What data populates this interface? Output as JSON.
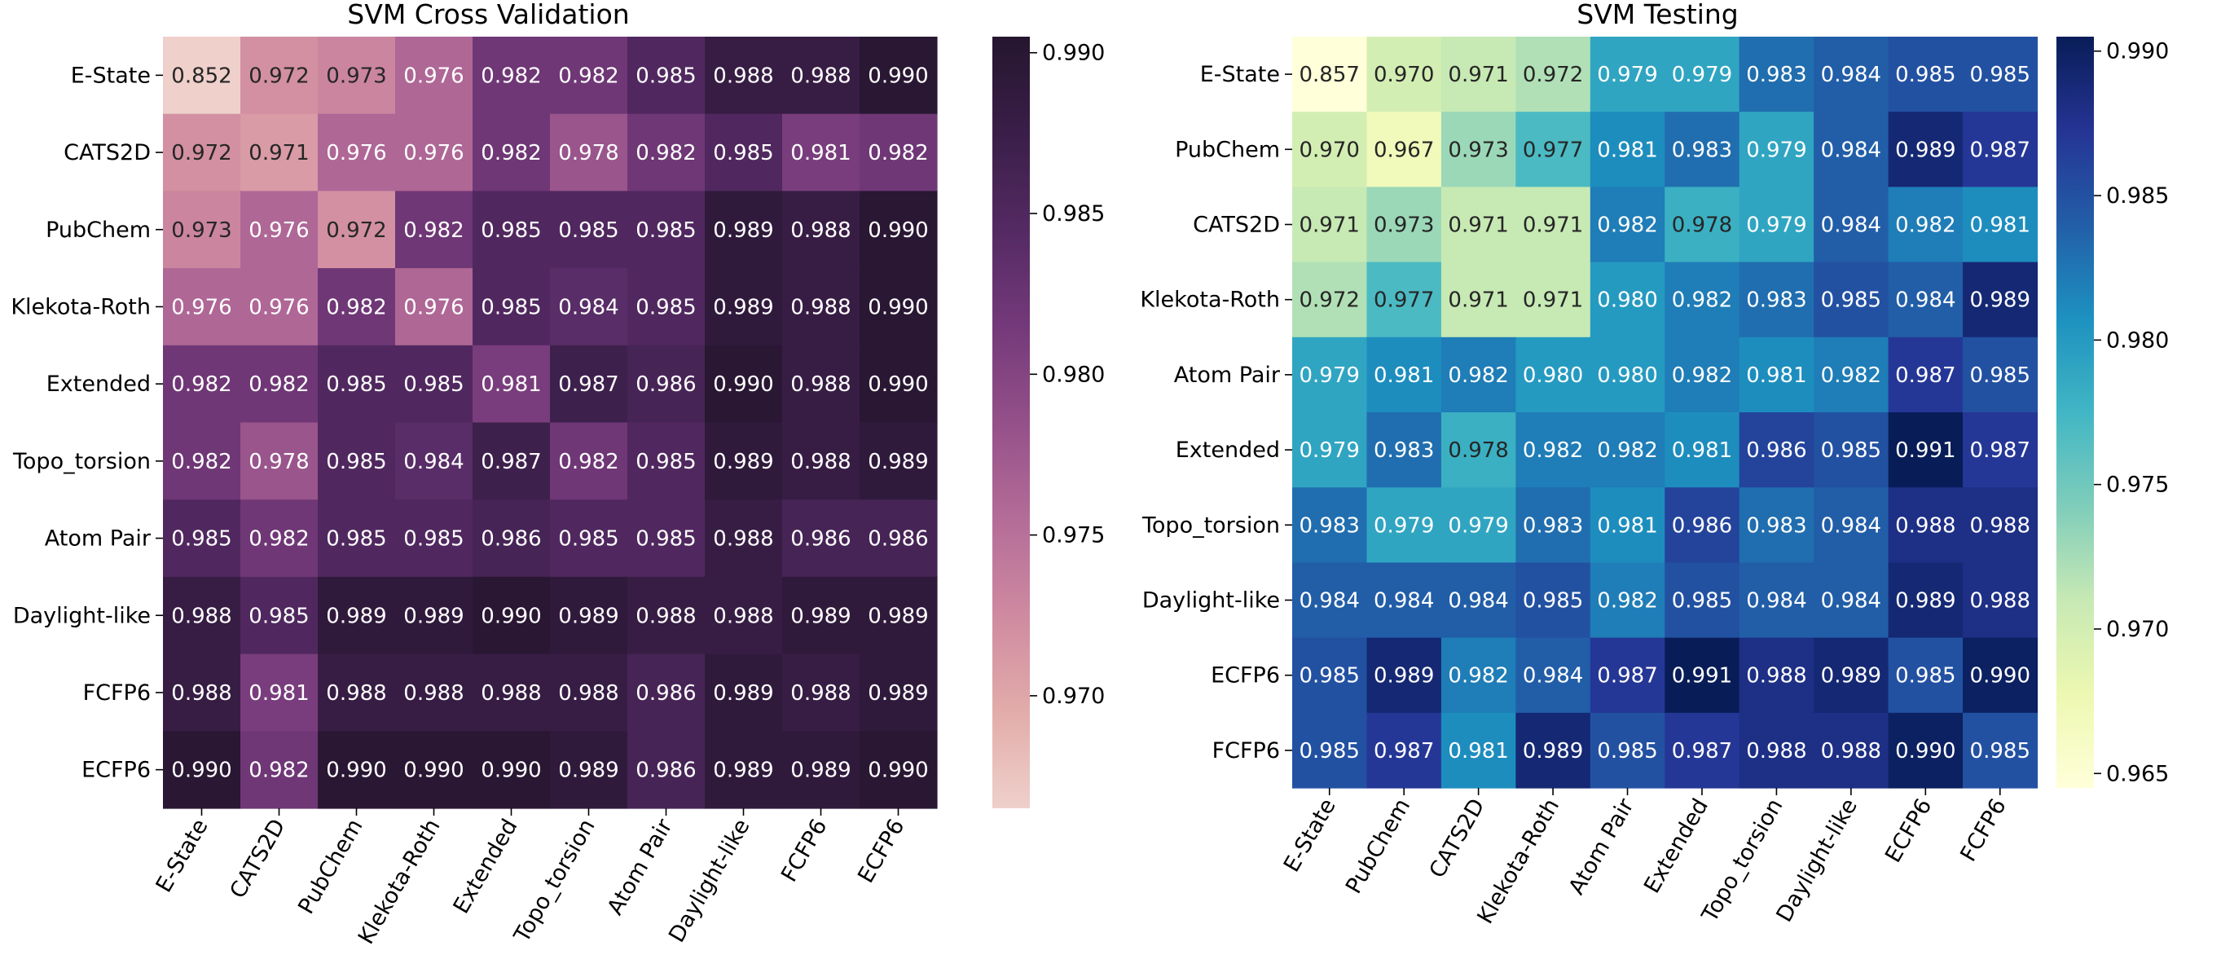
{
  "chart_data": [
    {
      "type": "heatmap",
      "title": "SVM Cross Validation",
      "xlabel": "",
      "ylabel": "",
      "row_labels": [
        "E-State",
        "CATS2D",
        "PubChem",
        "Klekota-Roth",
        "Extended",
        "Topo_torsion",
        "Atom Pair",
        "Daylight-like",
        "FCFP6",
        "ECFP6"
      ],
      "col_labels": [
        "E-State",
        "CATS2D",
        "PubChem",
        "Klekota-Roth",
        "Extended",
        "Topo_torsion",
        "Atom Pair",
        "Daylight-like",
        "FCFP6",
        "ECFP6"
      ],
      "values": [
        [
          0.852,
          0.972,
          0.973,
          0.976,
          0.982,
          0.982,
          0.985,
          0.988,
          0.988,
          0.99
        ],
        [
          0.972,
          0.971,
          0.976,
          0.976,
          0.982,
          0.978,
          0.982,
          0.985,
          0.981,
          0.982
        ],
        [
          0.973,
          0.976,
          0.972,
          0.982,
          0.985,
          0.985,
          0.985,
          0.989,
          0.988,
          0.99
        ],
        [
          0.976,
          0.976,
          0.982,
          0.976,
          0.985,
          0.984,
          0.985,
          0.989,
          0.988,
          0.99
        ],
        [
          0.982,
          0.982,
          0.985,
          0.985,
          0.981,
          0.987,
          0.986,
          0.99,
          0.988,
          0.99
        ],
        [
          0.982,
          0.978,
          0.985,
          0.984,
          0.987,
          0.982,
          0.985,
          0.989,
          0.988,
          0.989
        ],
        [
          0.985,
          0.982,
          0.985,
          0.985,
          0.986,
          0.985,
          0.985,
          0.988,
          0.986,
          0.986
        ],
        [
          0.988,
          0.985,
          0.989,
          0.989,
          0.99,
          0.989,
          0.988,
          0.988,
          0.989,
          0.989
        ],
        [
          0.988,
          0.981,
          0.988,
          0.988,
          0.988,
          0.988,
          0.986,
          0.989,
          0.988,
          0.989
        ],
        [
          0.99,
          0.982,
          0.99,
          0.99,
          0.99,
          0.989,
          0.986,
          0.989,
          0.989,
          0.99
        ]
      ],
      "colorbar": {
        "range": [
          0.9665,
          0.9905
        ],
        "ticks": [
          0.97,
          0.975,
          0.98,
          0.985,
          0.99
        ],
        "tick_labels": [
          "0.970",
          "0.975",
          "0.980",
          "0.985",
          "0.990"
        ],
        "colormap": "pink-to-dark-purple",
        "colors": [
          "#efd0cb",
          "#e2acaa",
          "#cf8aa0",
          "#b46c98",
          "#945089",
          "#74397a",
          "#542a63",
          "#3a1e48",
          "#25162f"
        ]
      }
    },
    {
      "type": "heatmap",
      "title": "SVM Testing",
      "xlabel": "",
      "ylabel": "",
      "row_labels": [
        "E-State",
        "PubChem",
        "CATS2D",
        "Klekota-Roth",
        "Atom Pair",
        "Extended",
        "Topo_torsion",
        "Daylight-like",
        "ECFP6",
        "FCFP6"
      ],
      "col_labels": [
        "E-State",
        "PubChem",
        "CATS2D",
        "Klekota-Roth",
        "Atom Pair",
        "Extended",
        "Topo_torsion",
        "Daylight-like",
        "ECFP6",
        "FCFP6"
      ],
      "values": [
        [
          0.857,
          0.97,
          0.971,
          0.972,
          0.979,
          0.979,
          0.983,
          0.984,
          0.985,
          0.985
        ],
        [
          0.97,
          0.967,
          0.973,
          0.977,
          0.981,
          0.983,
          0.979,
          0.984,
          0.989,
          0.987
        ],
        [
          0.971,
          0.973,
          0.971,
          0.971,
          0.982,
          0.978,
          0.979,
          0.984,
          0.982,
          0.981
        ],
        [
          0.972,
          0.977,
          0.971,
          0.971,
          0.98,
          0.982,
          0.983,
          0.985,
          0.984,
          0.989
        ],
        [
          0.979,
          0.981,
          0.982,
          0.98,
          0.98,
          0.982,
          0.981,
          0.982,
          0.987,
          0.985
        ],
        [
          0.979,
          0.983,
          0.978,
          0.982,
          0.982,
          0.981,
          0.986,
          0.985,
          0.991,
          0.987
        ],
        [
          0.983,
          0.979,
          0.979,
          0.983,
          0.981,
          0.986,
          0.983,
          0.984,
          0.988,
          0.988
        ],
        [
          0.984,
          0.984,
          0.984,
          0.985,
          0.982,
          0.985,
          0.984,
          0.984,
          0.989,
          0.988
        ],
        [
          0.985,
          0.989,
          0.982,
          0.984,
          0.987,
          0.991,
          0.988,
          0.989,
          0.985,
          0.99
        ],
        [
          0.985,
          0.987,
          0.981,
          0.989,
          0.985,
          0.987,
          0.988,
          0.988,
          0.99,
          0.985
        ]
      ],
      "colorbar": {
        "range": [
          0.9645,
          0.9905
        ],
        "ticks": [
          0.965,
          0.97,
          0.975,
          0.98,
          0.985,
          0.99
        ],
        "tick_labels": [
          "0.965",
          "0.970",
          "0.975",
          "0.980",
          "0.985",
          "0.990"
        ],
        "colormap": "YlGnBu",
        "colors": [
          "#ffffd9",
          "#edf8b1",
          "#c7e9b4",
          "#7fcdbb",
          "#41b6c4",
          "#1d91c0",
          "#225ea8",
          "#253494",
          "#081d58"
        ]
      }
    }
  ]
}
